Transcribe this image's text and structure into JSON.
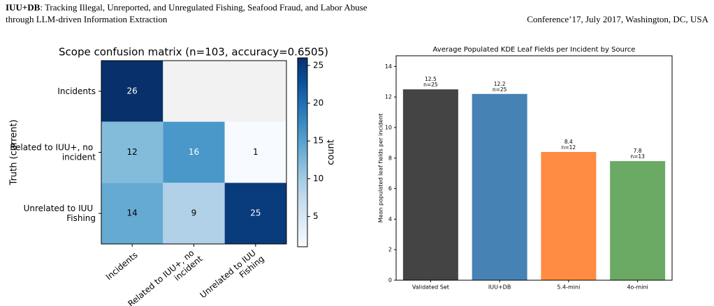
{
  "header": {
    "title_bold": "IUU+DB",
    "title_line1": ": Tracking Illegal, Unreported, and Unregulated Fishing, Seafood Fraud, and Labor Abuse",
    "title_line2": "through LLM-driven Information Extraction",
    "venue": "Conference’17, July 2017, Washington, DC, USA"
  },
  "chart_data": [
    {
      "type": "heatmap",
      "title": "Scope confusion matrix  (n=103, accuracy=0.6505)",
      "y_label": "Truth (current)",
      "x_categories": [
        "Incidents",
        "Related to IUU+, no incident",
        "Unrelated to IUU Fishing"
      ],
      "y_categories": [
        "Incidents",
        "Related to IUU+, no incident",
        "Unrelated to IUU Fishing"
      ],
      "values": [
        [
          26,
          null,
          null
        ],
        [
          12,
          16,
          1
        ],
        [
          14,
          9,
          25
        ]
      ],
      "colormap": "Blues",
      "missing_color": "#f2f2f2",
      "clim": [
        1,
        26
      ],
      "colorbar_label": "count",
      "colorbar_ticks": [
        5,
        10,
        15,
        20,
        25
      ]
    },
    {
      "type": "bar",
      "title": "Average Populated KDE Leaf Fields per Incident by Source",
      "y_label": "Mean populated leaf fields per incident",
      "categories": [
        "Validated Set",
        "IUU+DB",
        "5.4-mini",
        "4o-mini"
      ],
      "values": [
        12.5,
        12.2,
        8.4,
        7.8
      ],
      "annotations": [
        "n=25",
        "n=25",
        "n=12",
        "n=13"
      ],
      "colors": [
        "#444444",
        "#4682b4",
        "#ff8c42",
        "#6aaa64"
      ],
      "ylim": [
        0,
        14.7
      ],
      "yticks": [
        0,
        2,
        4,
        6,
        8,
        10,
        12,
        14
      ],
      "grid": false
    }
  ]
}
